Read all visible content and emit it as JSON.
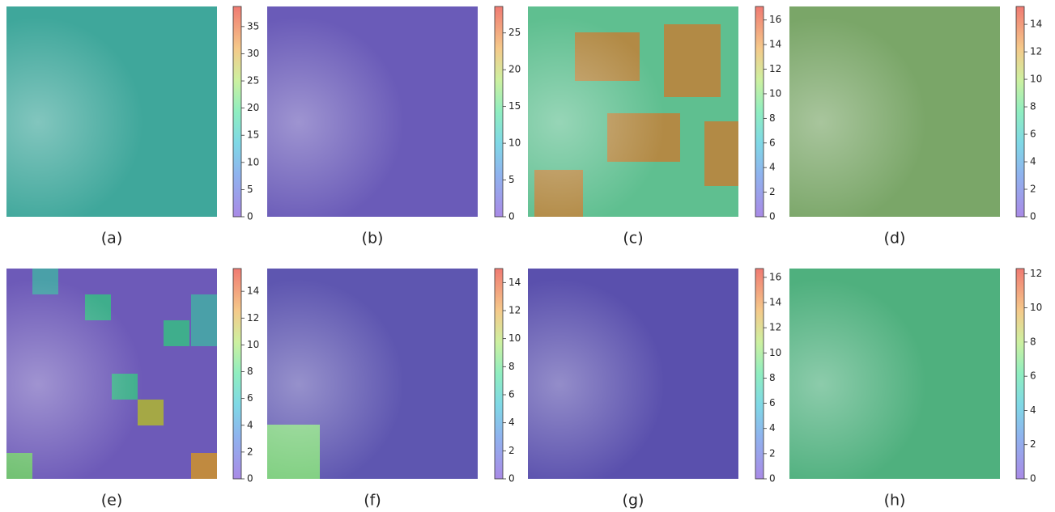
{
  "panels": [
    {
      "label": "(a)",
      "colorbar": {
        "lim": [
          0,
          38.7
        ],
        "ticks": [
          0,
          5,
          10,
          15,
          20,
          25,
          30,
          35
        ]
      }
    },
    {
      "label": "(b)",
      "colorbar": {
        "lim": [
          0,
          28.6
        ],
        "ticks": [
          0,
          5,
          10,
          15,
          20,
          25
        ]
      }
    },
    {
      "label": "(c)",
      "colorbar": {
        "lim": [
          0,
          17.1
        ],
        "ticks": [
          0,
          2,
          4,
          6,
          8,
          10,
          12,
          14,
          16
        ]
      }
    },
    {
      "label": "(d)",
      "colorbar": {
        "lim": [
          0,
          15.3
        ],
        "ticks": [
          0,
          2,
          4,
          6,
          8,
          10,
          12,
          14
        ]
      }
    },
    {
      "label": "(e)",
      "colorbar": {
        "lim": [
          0,
          15.7
        ],
        "ticks": [
          0,
          2,
          4,
          6,
          8,
          10,
          12,
          14
        ]
      }
    },
    {
      "label": "(f)",
      "colorbar": {
        "lim": [
          0,
          15
        ],
        "ticks": [
          0,
          2,
          4,
          6,
          8,
          10,
          12,
          14
        ]
      }
    },
    {
      "label": "(g)",
      "colorbar": {
        "lim": [
          0,
          16.7
        ],
        "ticks": [
          0,
          2,
          4,
          6,
          8,
          10,
          12,
          14,
          16
        ]
      }
    },
    {
      "label": "(h)",
      "colorbar": {
        "lim": [
          0,
          12.3
        ],
        "ticks": [
          0,
          2,
          4,
          6,
          8,
          10,
          12
        ]
      }
    }
  ]
}
